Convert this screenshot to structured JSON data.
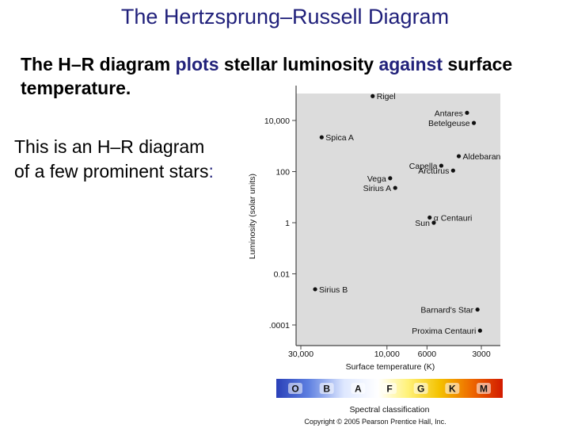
{
  "slide": {
    "title": "The Hertzsprung–Russell Diagram",
    "lead": {
      "p1": "The H–R diagram ",
      "p2": "plots",
      "p3": " stellar luminosity ",
      "p4": "against",
      "p5": " surface temperature."
    },
    "side": {
      "p1": "This is an H–R diagram of a few prominent stars",
      "p2": ":"
    }
  },
  "chart_data": {
    "type": "scatter",
    "xlabel": "Surface temperature (K)",
    "ylabel": "Luminosity (solar units)",
    "x_scale": "log",
    "x_reversed": true,
    "y_scale": "log",
    "x_ticks": [
      {
        "value": 30000,
        "label": "30,000"
      },
      {
        "value": 10000,
        "label": "10,000"
      },
      {
        "value": 6000,
        "label": "6000"
      },
      {
        "value": 3000,
        "label": "3000"
      }
    ],
    "y_ticks": [
      {
        "value": 10000,
        "label": "10,000"
      },
      {
        "value": 100,
        "label": "100"
      },
      {
        "value": 1,
        "label": "1"
      },
      {
        "value": 0.01,
        "label": "0.01"
      },
      {
        "value": 0.0001,
        "label": ".0001"
      }
    ],
    "points": [
      {
        "name": "Rigel",
        "temperature": 12000,
        "luminosity": 90000,
        "label_side": "right"
      },
      {
        "name": "Antares",
        "temperature": 3600,
        "luminosity": 20000,
        "label_side": "left"
      },
      {
        "name": "Betelgeuse",
        "temperature": 3300,
        "luminosity": 8000,
        "label_side": "left"
      },
      {
        "name": "Spica A",
        "temperature": 23000,
        "luminosity": 2200,
        "label_side": "right"
      },
      {
        "name": "Capella",
        "temperature": 5000,
        "luminosity": 170,
        "label_side": "left"
      },
      {
        "name": "Aldebaran",
        "temperature": 4000,
        "luminosity": 400,
        "label_side": "right"
      },
      {
        "name": "Arcturus",
        "temperature": 4300,
        "luminosity": 110,
        "label_side": "left"
      },
      {
        "name": "Vega",
        "temperature": 9600,
        "luminosity": 55,
        "label_side": "left"
      },
      {
        "name": "Sirius A",
        "temperature": 9000,
        "luminosity": 23,
        "label_side": "left"
      },
      {
        "name": "α Centauri",
        "temperature": 5800,
        "luminosity": 1.6,
        "label_side": "right"
      },
      {
        "name": "Sun",
        "temperature": 5500,
        "luminosity": 1,
        "label_side": "left"
      },
      {
        "name": "Sirius B",
        "temperature": 25000,
        "luminosity": 0.0025,
        "label_side": "right"
      },
      {
        "name": "Barnard's Star",
        "temperature": 3150,
        "luminosity": 0.0004,
        "label_side": "left"
      },
      {
        "name": "Proxima Centauri",
        "temperature": 3050,
        "luminosity": 6e-05,
        "label_side": "left"
      }
    ],
    "spectral_classes": [
      "O",
      "B",
      "A",
      "F",
      "G",
      "K",
      "M"
    ],
    "spectral_title": "Spectral classification",
    "copyright": "Copyright © 2005 Pearson Prentice Hall, Inc.",
    "colors": {
      "plot_bg": "#dcdcdc",
      "axis": "#444444",
      "point": "#111111"
    }
  }
}
